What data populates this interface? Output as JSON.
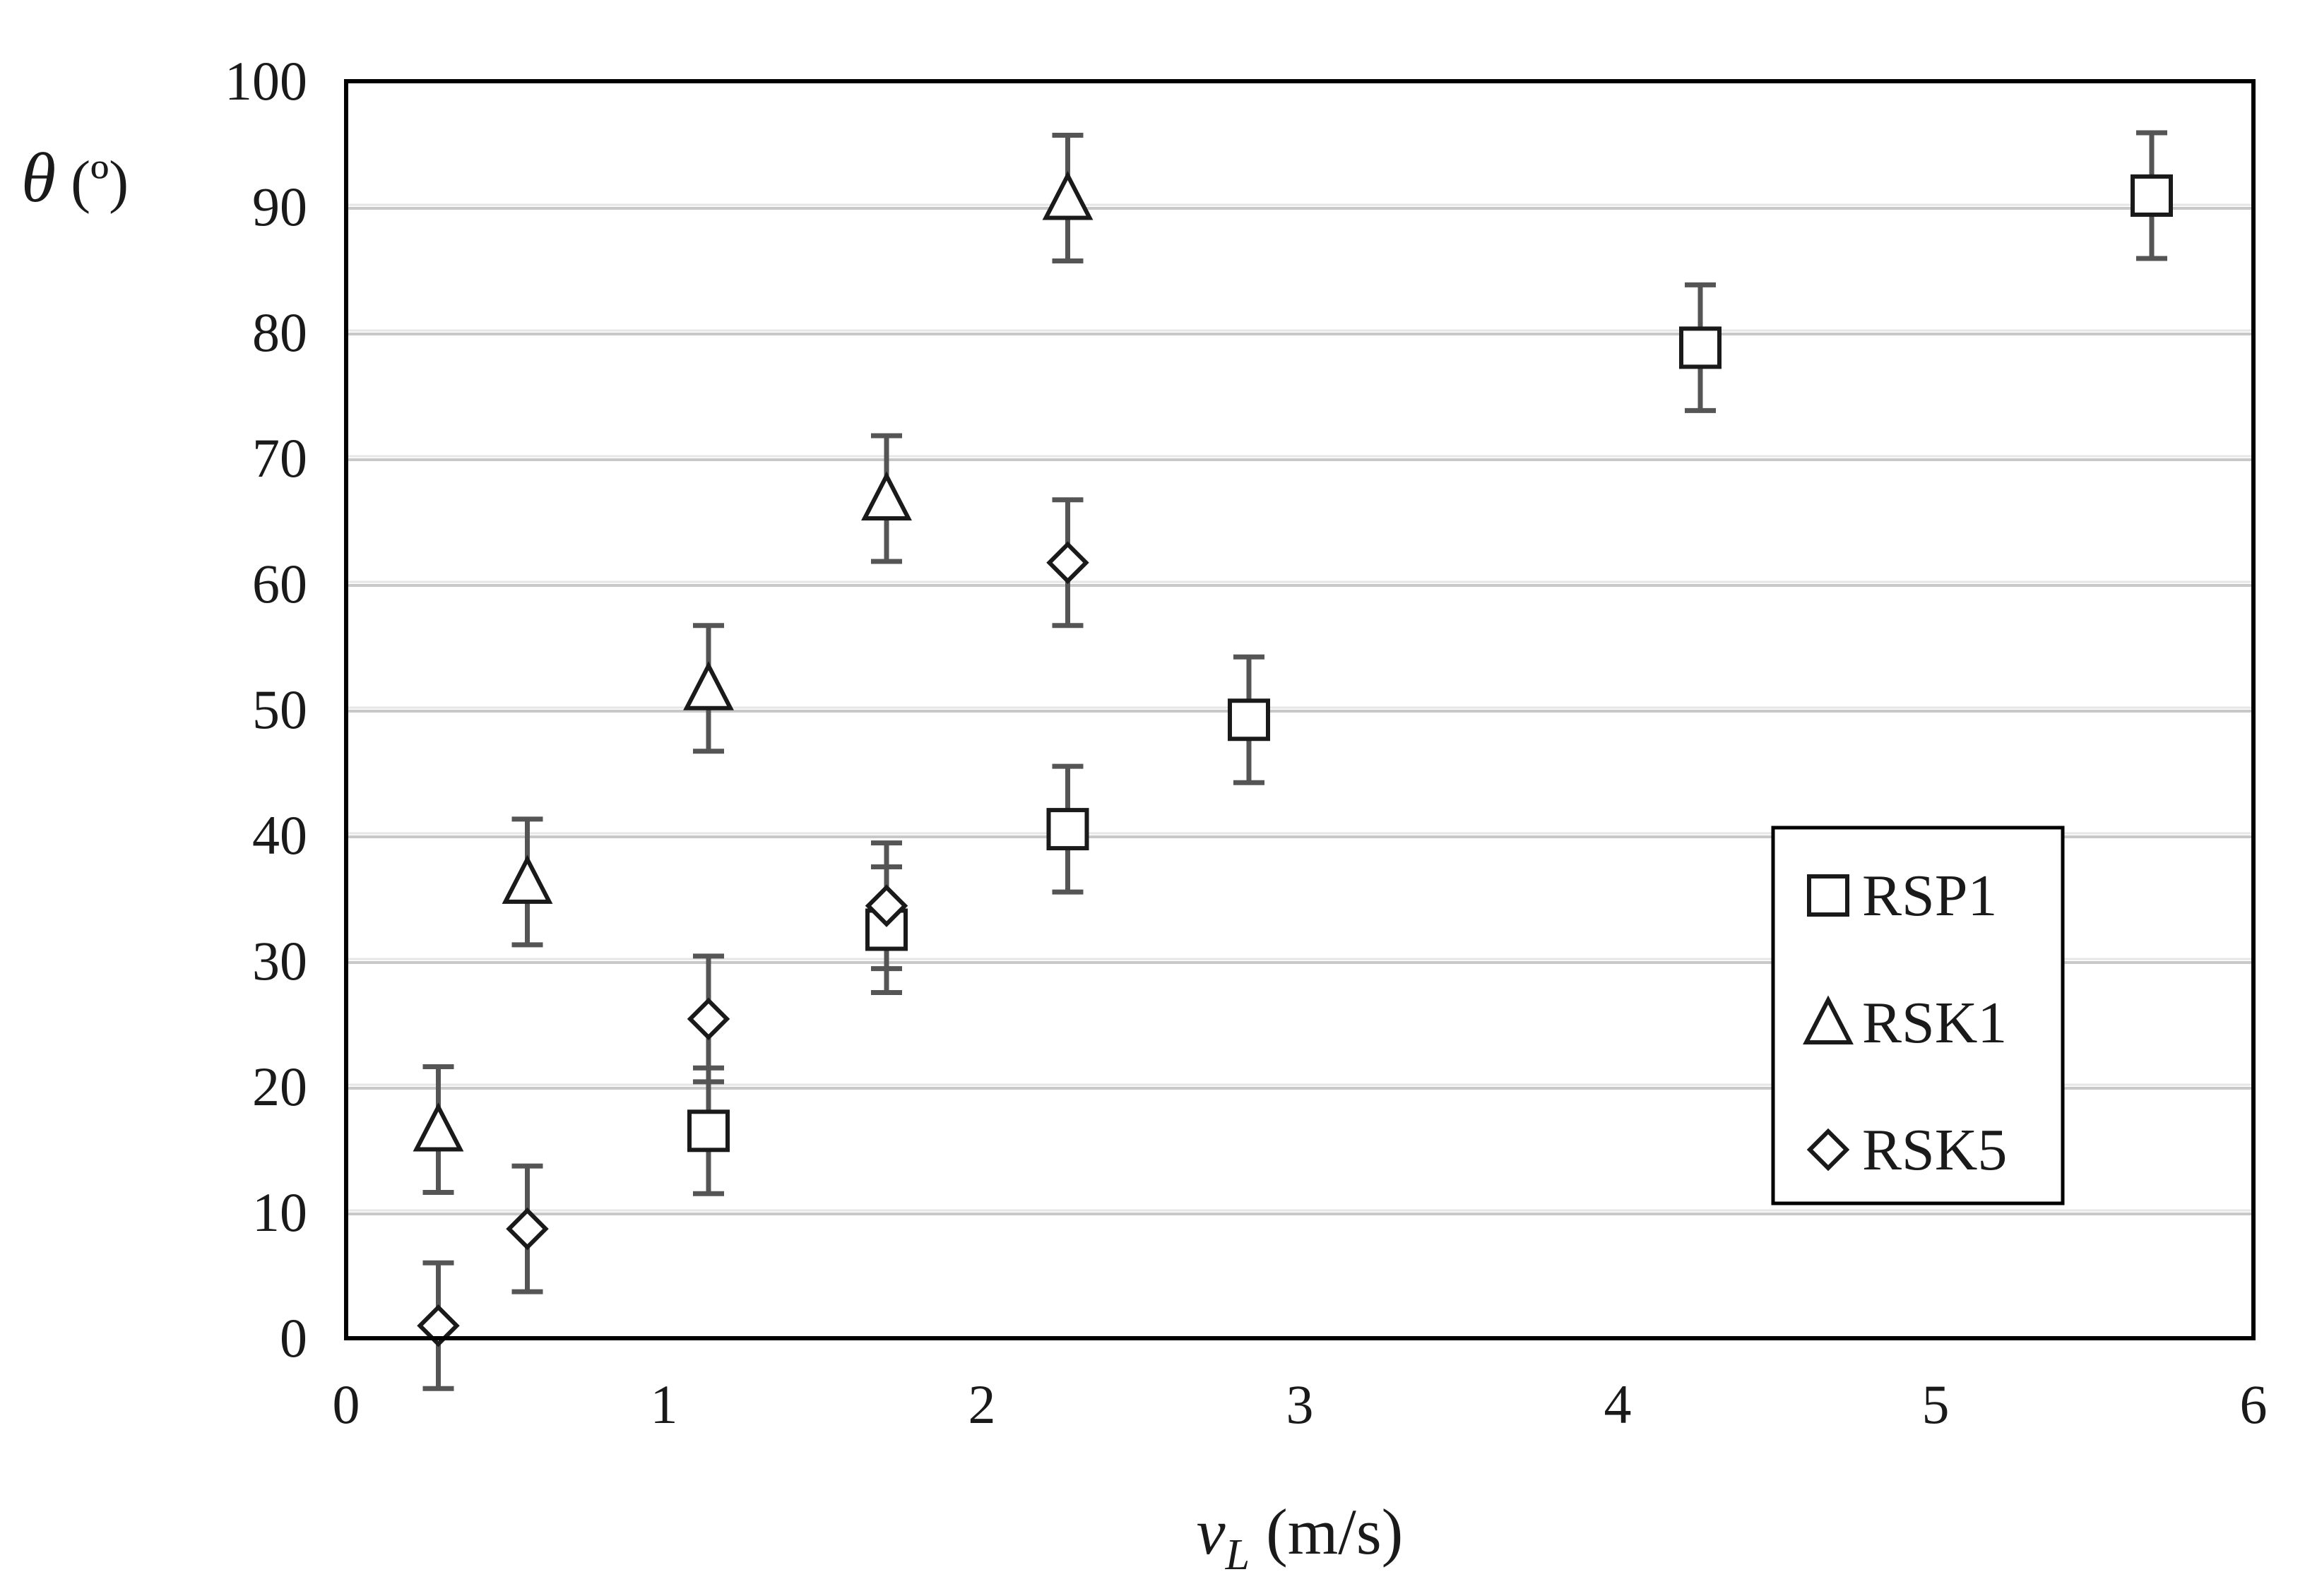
{
  "chart_data": {
    "type": "scatter",
    "title": "",
    "xlabel_italic": "v",
    "xlabel_sub": "L",
    "xlabel_rest": " (m/s)",
    "ylabel_symbol": "θ",
    "ylabel_unit": " (º)",
    "xlim": [
      0,
      6
    ],
    "ylim": [
      0,
      100
    ],
    "x_ticks": [
      0,
      1,
      2,
      3,
      4,
      5,
      6
    ],
    "y_ticks": [
      0,
      10,
      20,
      30,
      40,
      50,
      60,
      70,
      80,
      90,
      100
    ],
    "grid": "horizontal",
    "legend_position": "right",
    "series": [
      {
        "name": "RSP1",
        "marker": "square",
        "points": [
          {
            "x": 1.14,
            "y": 16.5,
            "err": 5
          },
          {
            "x": 1.7,
            "y": 32.5,
            "err": 5
          },
          {
            "x": 2.27,
            "y": 40.5,
            "err": 5
          },
          {
            "x": 2.84,
            "y": 49.2,
            "err": 5
          },
          {
            "x": 4.26,
            "y": 78.8,
            "err": 5
          },
          {
            "x": 5.68,
            "y": 90.9,
            "err": 5
          }
        ]
      },
      {
        "name": "RSK1",
        "marker": "triangle",
        "points": [
          {
            "x": 0.29,
            "y": 16.6,
            "err": 5
          },
          {
            "x": 0.57,
            "y": 36.3,
            "err": 5
          },
          {
            "x": 1.14,
            "y": 51.7,
            "err": 5
          },
          {
            "x": 1.7,
            "y": 66.8,
            "err": 5
          },
          {
            "x": 2.27,
            "y": 90.7,
            "err": 5
          }
        ]
      },
      {
        "name": "RSK5",
        "marker": "diamond",
        "points": [
          {
            "x": 0.29,
            "y": 1.0,
            "err": 5
          },
          {
            "x": 0.57,
            "y": 8.7,
            "err": 5
          },
          {
            "x": 1.14,
            "y": 25.4,
            "err": 5
          },
          {
            "x": 1.7,
            "y": 34.4,
            "err": 5
          },
          {
            "x": 2.27,
            "y": 61.7,
            "err": 5
          }
        ]
      }
    ]
  }
}
